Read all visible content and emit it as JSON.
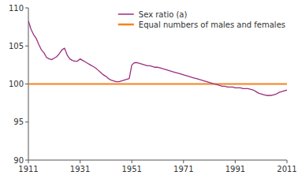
{
  "chart_data": {
    "type": "line",
    "x": [
      1911,
      1912,
      1913,
      1914,
      1915,
      1916,
      1917,
      1918,
      1919,
      1920,
      1921,
      1922,
      1923,
      1924,
      1925,
      1926,
      1927,
      1928,
      1929,
      1930,
      1931,
      1932,
      1933,
      1934,
      1935,
      1936,
      1937,
      1938,
      1939,
      1940,
      1941,
      1942,
      1943,
      1944,
      1945,
      1946,
      1947,
      1948,
      1949,
      1950,
      1951,
      1952,
      1953,
      1954,
      1955,
      1956,
      1957,
      1958,
      1959,
      1960,
      1961,
      1962,
      1963,
      1964,
      1965,
      1966,
      1967,
      1968,
      1969,
      1970,
      1971,
      1972,
      1973,
      1974,
      1975,
      1976,
      1977,
      1978,
      1979,
      1980,
      1981,
      1982,
      1983,
      1984,
      1985,
      1986,
      1987,
      1988,
      1989,
      1990,
      1991,
      1992,
      1993,
      1994,
      1995,
      1996,
      1997,
      1998,
      1999,
      2000,
      2001,
      2002,
      2003,
      2004,
      2005,
      2006,
      2007,
      2008,
      2009,
      2010,
      2011
    ],
    "series": [
      {
        "name": "Sex ratio (a)",
        "color": "#9b2d7f",
        "values": [
          108.3,
          107.2,
          106.5,
          106.0,
          105.2,
          104.5,
          104.1,
          103.5,
          103.3,
          103.2,
          103.4,
          103.6,
          104.0,
          104.5,
          104.7,
          103.8,
          103.3,
          103.1,
          103.0,
          103.0,
          103.3,
          103.1,
          102.9,
          102.7,
          102.5,
          102.3,
          102.1,
          101.8,
          101.5,
          101.2,
          101.0,
          100.7,
          100.5,
          100.4,
          100.3,
          100.3,
          100.4,
          100.5,
          100.6,
          100.7,
          102.5,
          102.8,
          102.8,
          102.7,
          102.6,
          102.5,
          102.4,
          102.4,
          102.3,
          102.2,
          102.2,
          102.1,
          102.0,
          101.9,
          101.8,
          101.7,
          101.6,
          101.5,
          101.4,
          101.3,
          101.2,
          101.1,
          101.0,
          100.9,
          100.8,
          100.7,
          100.6,
          100.5,
          100.4,
          100.3,
          100.2,
          100.1,
          100.0,
          99.9,
          99.8,
          99.7,
          99.7,
          99.6,
          99.6,
          99.6,
          99.5,
          99.5,
          99.5,
          99.4,
          99.4,
          99.4,
          99.3,
          99.2,
          99.0,
          98.8,
          98.7,
          98.6,
          98.5,
          98.5,
          98.5,
          98.6,
          98.7,
          98.9,
          99.0,
          99.1,
          99.2
        ]
      }
    ],
    "reference_lines": [
      {
        "name": "Equal numbers of males and females",
        "value": 100,
        "color": "#f5821e"
      }
    ],
    "xlim": [
      1911,
      2011
    ],
    "xticks": [
      1911,
      1931,
      1951,
      1971,
      1991,
      2011
    ],
    "ylim": [
      90,
      110
    ],
    "yticks": [
      90,
      95,
      100,
      105,
      110
    ],
    "grid": false,
    "legend": "upper right"
  }
}
